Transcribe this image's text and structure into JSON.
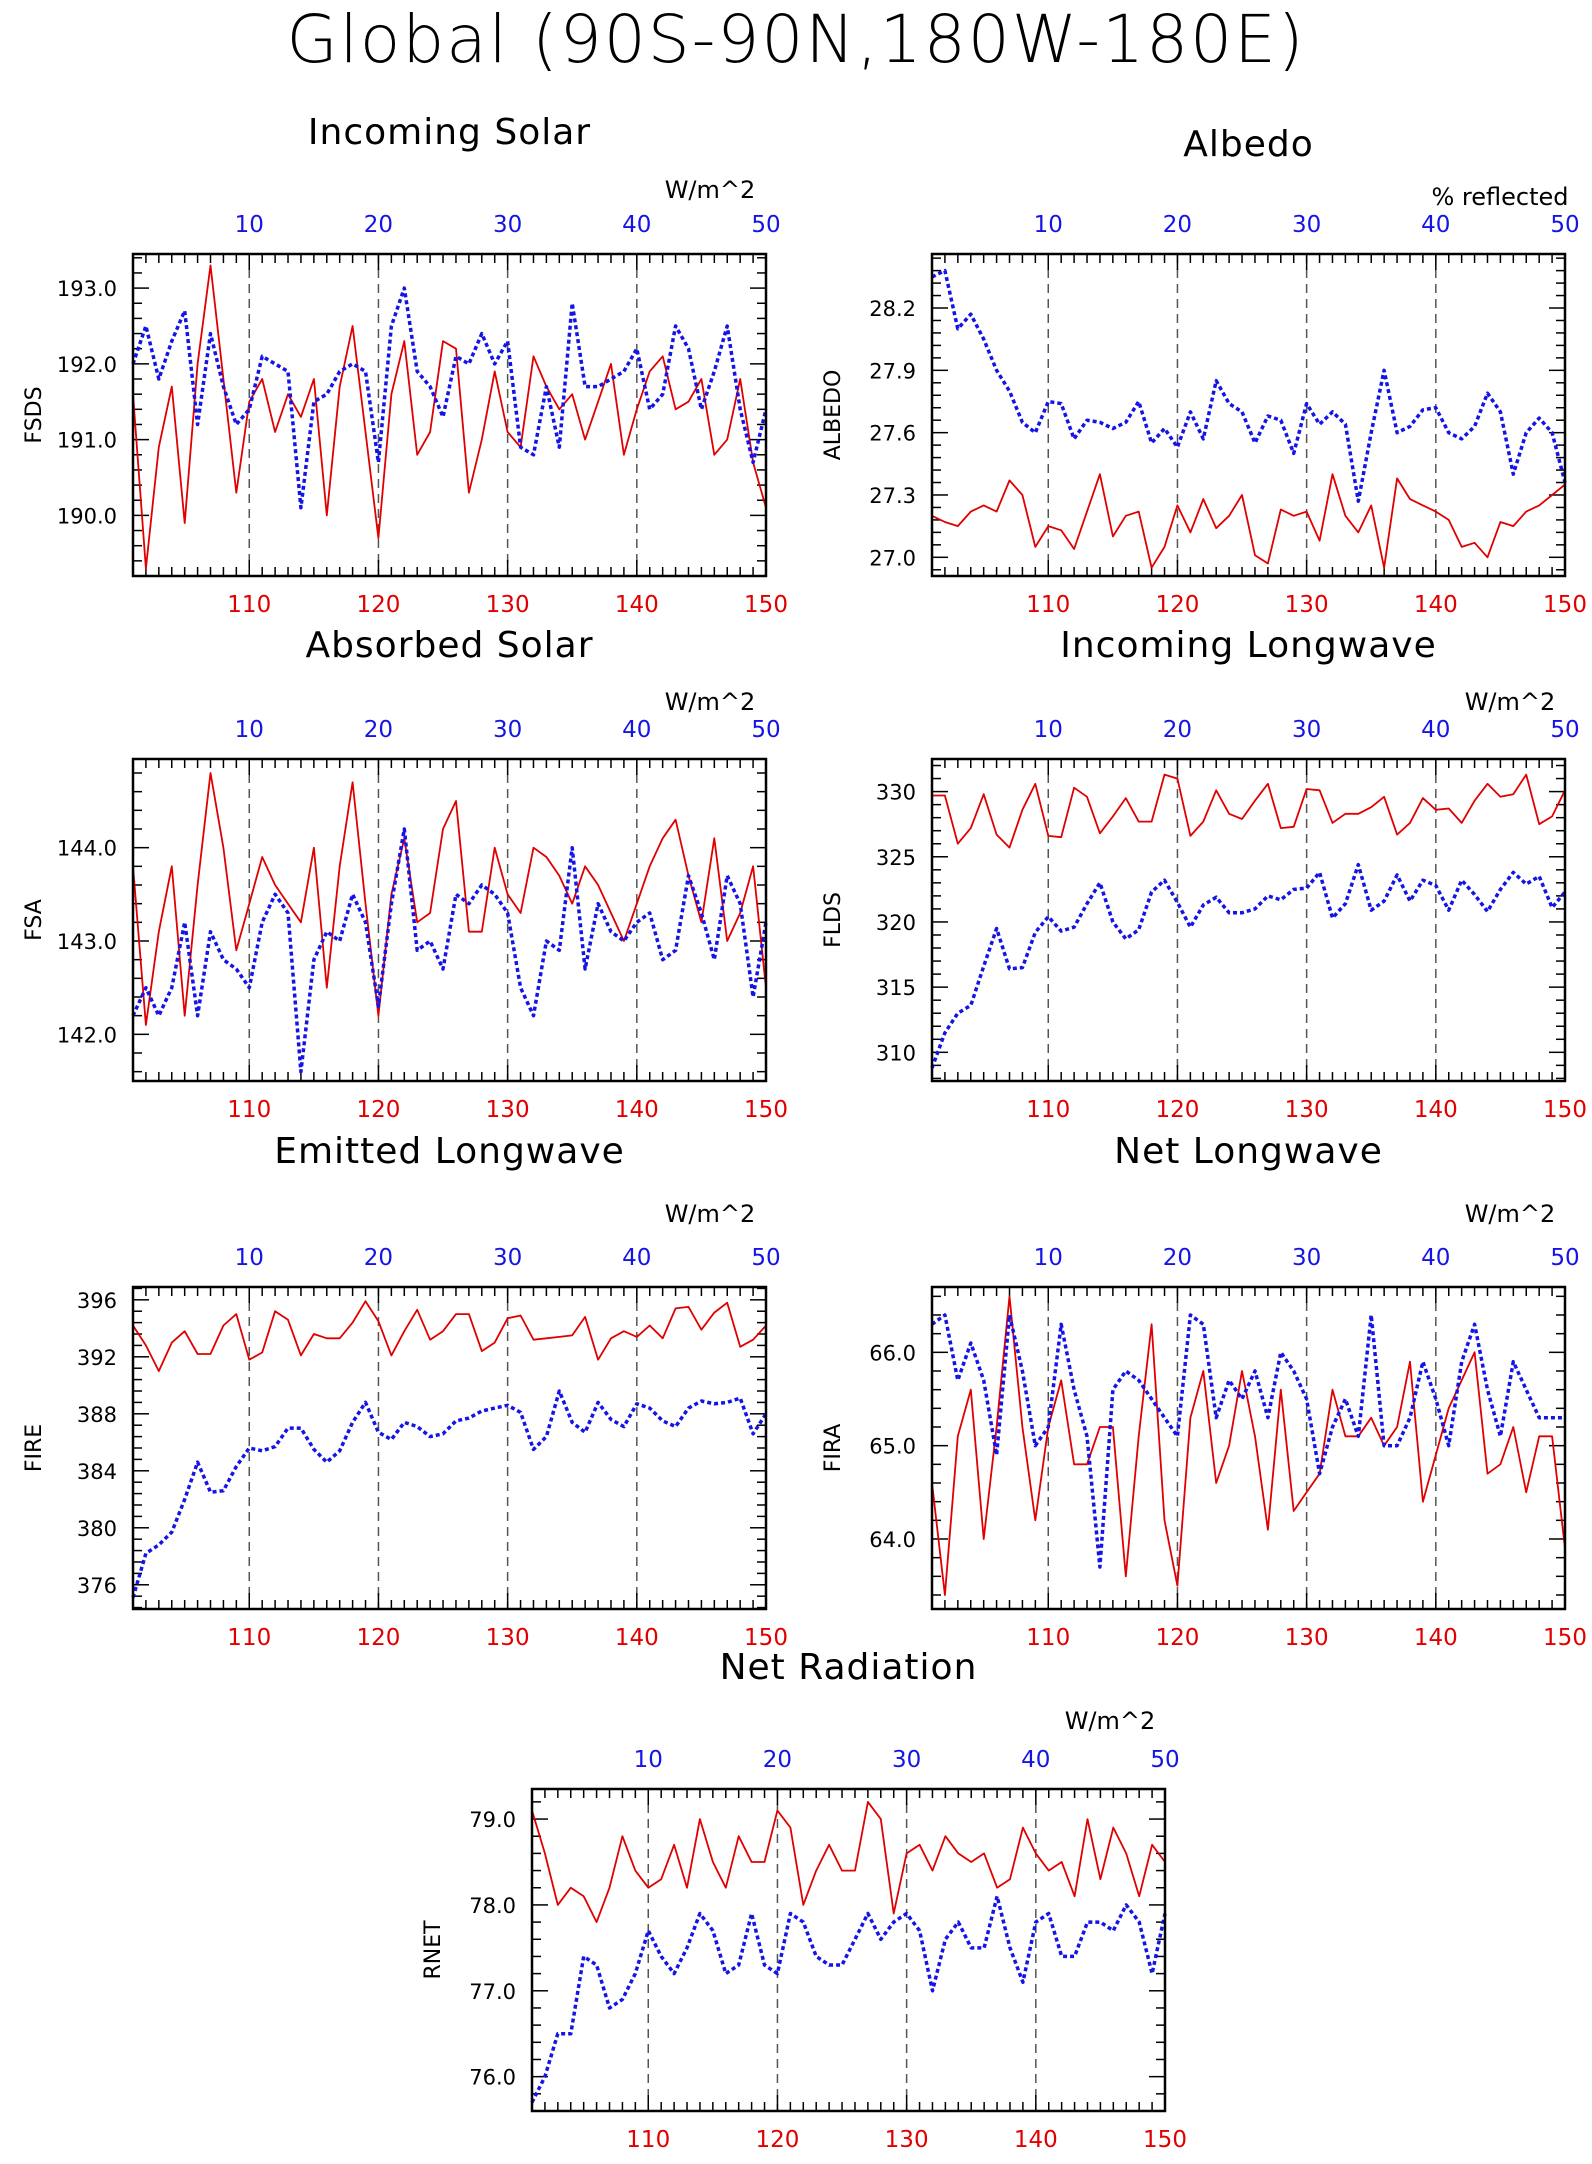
{
  "main_title": "Global (90S-90N,180W-180E)",
  "colors": {
    "model_a": "#e00000",
    "model_b": "#1414e6"
  },
  "chart_data": [
    {
      "type": "line",
      "title": "Incoming Solar",
      "ylabel": "FSDS",
      "unit": "W/m^2",
      "x_bottom": {
        "ticks": [
          110,
          120,
          130,
          140,
          150
        ],
        "range": [
          101,
          150
        ],
        "color": "#e00000"
      },
      "x_top": {
        "ticks": [
          10,
          20,
          30,
          40,
          50
        ],
        "range": [
          1,
          50
        ],
        "color": "#1414e6"
      },
      "yticks": [
        "193.0",
        "192.0",
        "191.0",
        "190.0"
      ],
      "ylim": [
        189.2,
        193.45
      ],
      "series": [
        {
          "values": [
            191.6,
            189.3,
            190.9,
            191.7,
            189.9,
            192.0,
            193.3,
            191.8,
            190.3,
            191.5,
            191.8,
            191.1,
            191.6,
            191.3,
            191.8,
            190.0,
            191.7,
            192.5,
            191.1,
            189.7,
            191.6,
            192.3,
            190.8,
            191.1,
            192.3,
            192.2,
            190.3,
            191.0,
            191.9,
            191.1,
            190.9,
            192.1,
            191.7,
            191.4,
            191.6,
            191.0,
            191.5,
            192.0,
            190.8,
            191.4,
            191.9,
            192.1,
            191.4,
            191.5,
            191.8,
            190.8,
            191.0,
            191.8,
            190.7,
            190.1
          ],
          "color": "#e00000",
          "style": "solid"
        },
        {
          "values": [
            192.0,
            192.5,
            191.8,
            192.3,
            192.7,
            191.2,
            192.4,
            191.7,
            191.2,
            191.4,
            192.1,
            192.0,
            191.9,
            190.1,
            191.5,
            191.6,
            191.9,
            192.0,
            191.9,
            190.7,
            192.5,
            193.0,
            191.9,
            191.7,
            191.3,
            192.1,
            192.0,
            192.4,
            192.0,
            192.3,
            190.9,
            190.8,
            191.7,
            190.9,
            192.8,
            191.7,
            191.7,
            191.8,
            191.9,
            192.2,
            191.4,
            191.6,
            192.5,
            192.2,
            191.4,
            191.9,
            192.5,
            191.4,
            190.7,
            191.4
          ],
          "color": "#1414e6",
          "style": "dotted"
        }
      ]
    },
    {
      "type": "line",
      "title": "Albedo",
      "ylabel": "ALBEDO",
      "unit": "% reflected",
      "x_bottom": {
        "ticks": [
          110,
          120,
          130,
          140,
          150
        ],
        "range": [
          101,
          150
        ],
        "color": "#e00000"
      },
      "x_top": {
        "ticks": [
          10,
          20,
          30,
          40,
          50
        ],
        "range": [
          1,
          50
        ],
        "color": "#1414e6"
      },
      "yticks": [
        "28.2",
        "27.9",
        "27.6",
        "27.3",
        "27.0"
      ],
      "ylim": [
        26.91,
        28.46
      ],
      "series": [
        {
          "values": [
            27.2,
            27.17,
            27.15,
            27.22,
            27.25,
            27.22,
            27.37,
            27.3,
            27.05,
            27.15,
            27.13,
            27.04,
            27.22,
            27.4,
            27.1,
            27.2,
            27.22,
            26.95,
            27.05,
            27.25,
            27.12,
            27.28,
            27.14,
            27.2,
            27.3,
            27.01,
            26.97,
            27.23,
            27.2,
            27.22,
            27.08,
            27.4,
            27.2,
            27.12,
            27.25,
            26.95,
            27.38,
            27.28,
            27.25,
            27.22,
            27.18,
            27.05,
            27.07,
            27.0,
            27.17,
            27.15,
            27.22,
            27.25,
            27.3,
            27.35
          ],
          "color": "#e00000",
          "style": "solid"
        },
        {
          "values": [
            28.35,
            28.38,
            28.1,
            28.17,
            28.05,
            27.9,
            27.8,
            27.65,
            27.6,
            27.75,
            27.74,
            27.57,
            27.66,
            27.65,
            27.62,
            27.65,
            27.75,
            27.55,
            27.62,
            27.53,
            27.7,
            27.57,
            27.85,
            27.74,
            27.7,
            27.55,
            27.68,
            27.66,
            27.5,
            27.74,
            27.64,
            27.7,
            27.64,
            27.27,
            27.6,
            27.9,
            27.6,
            27.63,
            27.71,
            27.72,
            27.6,
            27.57,
            27.63,
            27.79,
            27.7,
            27.4,
            27.6,
            27.67,
            27.6,
            27.36
          ],
          "color": "#1414e6",
          "style": "dotted"
        }
      ]
    },
    {
      "type": "line",
      "title": "Absorbed Solar",
      "ylabel": "FSA",
      "unit": "W/m^2",
      "x_bottom": {
        "ticks": [
          110,
          120,
          130,
          140,
          150
        ],
        "range": [
          101,
          150
        ],
        "color": "#e00000"
      },
      "x_top": {
        "ticks": [
          10,
          20,
          30,
          40,
          50
        ],
        "range": [
          1,
          50
        ],
        "color": "#1414e6"
      },
      "yticks": [
        "144.0",
        "143.0",
        "142.0"
      ],
      "ylim": [
        141.5,
        144.95
      ],
      "series": [
        {
          "values": [
            143.8,
            142.1,
            143.1,
            143.8,
            142.2,
            143.6,
            144.8,
            144.0,
            142.9,
            143.4,
            143.9,
            143.6,
            143.4,
            143.2,
            144.0,
            142.5,
            143.8,
            144.7,
            143.4,
            142.2,
            143.5,
            144.1,
            143.2,
            143.3,
            144.2,
            144.5,
            143.1,
            143.1,
            144.0,
            143.5,
            143.3,
            144.0,
            143.9,
            143.7,
            143.4,
            143.8,
            143.6,
            143.3,
            143.0,
            143.4,
            143.8,
            144.1,
            144.3,
            143.7,
            143.2,
            144.1,
            143.0,
            143.3,
            143.8,
            142.5
          ],
          "color": "#e00000",
          "style": "solid"
        },
        {
          "values": [
            142.2,
            142.5,
            142.2,
            142.5,
            143.2,
            142.2,
            143.1,
            142.8,
            142.7,
            142.5,
            143.2,
            143.5,
            143.3,
            141.6,
            142.8,
            143.1,
            143.0,
            143.5,
            143.2,
            142.3,
            143.4,
            144.2,
            142.9,
            143.0,
            142.7,
            143.5,
            143.4,
            143.6,
            143.5,
            143.3,
            142.5,
            142.2,
            143.0,
            142.9,
            144.0,
            142.7,
            143.4,
            143.1,
            143.0,
            143.2,
            143.3,
            142.8,
            142.9,
            143.7,
            143.3,
            142.8,
            143.7,
            143.4,
            142.4,
            143.2
          ],
          "color": "#1414e6",
          "style": "dotted"
        }
      ]
    },
    {
      "type": "line",
      "title": "Incoming Longwave",
      "ylabel": "FLDS",
      "unit": "W/m^2",
      "x_bottom": {
        "ticks": [
          110,
          120,
          130,
          140,
          150
        ],
        "range": [
          101,
          150
        ],
        "color": "#e00000"
      },
      "x_top": {
        "ticks": [
          10,
          20,
          30,
          40,
          50
        ],
        "range": [
          1,
          50
        ],
        "color": "#1414e6"
      },
      "yticks": [
        "330",
        "325",
        "320",
        "315",
        "310"
      ],
      "ylim": [
        307.8,
        332.5
      ],
      "series": [
        {
          "values": [
            329.7,
            329.7,
            326.0,
            327.2,
            329.8,
            326.7,
            325.7,
            328.6,
            330.6,
            326.6,
            326.5,
            330.3,
            329.6,
            326.8,
            328.1,
            329.5,
            327.7,
            327.7,
            331.3,
            331.0,
            326.6,
            327.7,
            330.1,
            328.3,
            327.9,
            329.3,
            330.6,
            327.2,
            327.3,
            330.2,
            330.1,
            327.6,
            328.3,
            328.3,
            328.8,
            329.6,
            326.7,
            327.6,
            329.5,
            328.6,
            328.7,
            327.6,
            329.3,
            330.6,
            329.6,
            329.8,
            331.3,
            327.5,
            328.1,
            330.1
          ],
          "color": "#e00000",
          "style": "solid"
        },
        {
          "values": [
            308.8,
            311.5,
            313.0,
            313.6,
            316.6,
            319.5,
            316.4,
            316.5,
            319.2,
            320.4,
            319.3,
            319.6,
            321.4,
            323.0,
            320.0,
            318.7,
            319.4,
            322.3,
            323.2,
            321.5,
            319.6,
            321.3,
            321.9,
            320.7,
            320.7,
            321.0,
            322.0,
            321.7,
            322.5,
            322.6,
            323.8,
            320.3,
            321.4,
            324.4,
            320.9,
            321.6,
            323.6,
            321.6,
            323.2,
            322.8,
            320.9,
            323.2,
            322.1,
            320.8,
            322.5,
            323.8,
            322.9,
            323.5,
            321.1,
            322.3
          ],
          "color": "#1414e6",
          "style": "dotted"
        }
      ]
    },
    {
      "type": "line",
      "title": "Emitted Longwave",
      "ylabel": "FIRE",
      "unit": "W/m^2",
      "x_bottom": {
        "ticks": [
          110,
          120,
          130,
          140,
          150
        ],
        "range": [
          101,
          150
        ],
        "color": "#e00000"
      },
      "x_top": {
        "ticks": [
          10,
          20,
          30,
          40,
          50
        ],
        "range": [
          1,
          50
        ],
        "color": "#1414e6"
      },
      "yticks": [
        "396",
        "392",
        "388",
        "384",
        "380",
        "376"
      ],
      "ylim": [
        374.3,
        396.9
      ],
      "series": [
        {
          "values": [
            394.2,
            392.8,
            391.0,
            393.0,
            393.8,
            392.2,
            392.2,
            394.2,
            395.0,
            391.8,
            392.3,
            395.2,
            394.6,
            392.1,
            393.6,
            393.3,
            393.3,
            394.4,
            395.9,
            394.5,
            392.1,
            393.8,
            395.3,
            393.2,
            393.8,
            395.0,
            395.0,
            392.4,
            393.0,
            394.7,
            394.9,
            393.2,
            393.3,
            393.4,
            393.5,
            394.8,
            391.8,
            393.3,
            393.8,
            393.4,
            394.2,
            393.3,
            395.4,
            395.5,
            393.9,
            395.1,
            395.8,
            392.7,
            393.2,
            394.2
          ],
          "color": "#e00000",
          "style": "solid"
        },
        {
          "values": [
            375.1,
            378.2,
            378.8,
            379.7,
            382.0,
            384.6,
            382.5,
            382.6,
            384.3,
            385.6,
            385.4,
            385.7,
            387.0,
            387.0,
            385.5,
            384.6,
            385.4,
            387.4,
            388.8,
            386.7,
            386.2,
            387.4,
            387.1,
            386.4,
            386.6,
            387.5,
            387.7,
            388.2,
            388.4,
            388.6,
            388.1,
            385.5,
            386.4,
            389.6,
            387.4,
            386.7,
            388.8,
            387.6,
            387.1,
            388.7,
            388.4,
            387.5,
            387.1,
            388.4,
            388.9,
            388.7,
            388.8,
            389.1,
            386.6,
            388.0
          ],
          "color": "#1414e6",
          "style": "dotted"
        }
      ]
    },
    {
      "type": "line",
      "title": "Net Longwave",
      "ylabel": "FIRA",
      "unit": "W/m^2",
      "x_bottom": {
        "ticks": [
          110,
          120,
          130,
          140,
          150
        ],
        "range": [
          101,
          150
        ],
        "color": "#e00000"
      },
      "x_top": {
        "ticks": [
          10,
          20,
          30,
          40,
          50
        ],
        "range": [
          1,
          50
        ],
        "color": "#1414e6"
      },
      "yticks": [
        "66.0",
        "65.0",
        "64.0"
      ],
      "ylim": [
        63.25,
        66.7
      ],
      "series": [
        {
          "values": [
            64.6,
            63.4,
            65.1,
            65.6,
            64.0,
            65.2,
            66.6,
            65.2,
            64.2,
            65.2,
            65.7,
            64.8,
            64.8,
            65.2,
            65.2,
            63.6,
            65.1,
            66.3,
            64.2,
            63.5,
            65.3,
            65.8,
            64.6,
            65.0,
            65.8,
            65.1,
            64.1,
            65.6,
            64.3,
            64.5,
            64.7,
            65.6,
            65.1,
            65.1,
            65.3,
            65.0,
            65.2,
            65.9,
            64.4,
            64.9,
            65.4,
            65.7,
            66.0,
            64.7,
            64.8,
            65.2,
            64.5,
            65.1,
            65.1,
            63.9
          ],
          "color": "#e00000",
          "style": "solid"
        },
        {
          "values": [
            66.3,
            66.4,
            65.7,
            66.1,
            65.7,
            64.9,
            66.4,
            65.8,
            65.0,
            65.2,
            66.3,
            65.6,
            65.1,
            63.7,
            65.6,
            65.8,
            65.7,
            65.5,
            65.3,
            65.1,
            66.4,
            66.3,
            65.3,
            65.7,
            65.5,
            65.8,
            65.3,
            66.0,
            65.8,
            65.5,
            64.7,
            65.2,
            65.5,
            65.1,
            66.4,
            65.0,
            65.0,
            65.3,
            65.9,
            65.5,
            65.0,
            65.9,
            66.3,
            65.6,
            65.1,
            65.9,
            65.6,
            65.3,
            65.3,
            65.3
          ],
          "color": "#1414e6",
          "style": "dotted"
        }
      ]
    },
    {
      "type": "line",
      "title": "Net Radiation",
      "ylabel": "RNET",
      "unit": "W/m^2",
      "x_bottom": {
        "ticks": [
          110,
          120,
          130,
          140,
          150
        ],
        "range": [
          101,
          150
        ],
        "color": "#e00000"
      },
      "x_top": {
        "ticks": [
          10,
          20,
          30,
          40,
          50
        ],
        "range": [
          1,
          50
        ],
        "color": "#1414e6"
      },
      "yticks": [
        "79.0",
        "78.0",
        "77.0",
        "76.0"
      ],
      "ylim": [
        75.6,
        79.35
      ],
      "series": [
        {
          "values": [
            79.1,
            78.6,
            78.0,
            78.2,
            78.1,
            77.8,
            78.2,
            78.8,
            78.4,
            78.2,
            78.3,
            78.7,
            78.2,
            79.0,
            78.5,
            78.2,
            78.8,
            78.5,
            78.5,
            79.1,
            78.9,
            78.0,
            78.4,
            78.7,
            78.4,
            78.4,
            79.2,
            79.0,
            77.9,
            78.6,
            78.7,
            78.4,
            78.8,
            78.6,
            78.5,
            78.6,
            78.2,
            78.3,
            78.9,
            78.6,
            78.4,
            78.5,
            78.1,
            79.0,
            78.3,
            78.9,
            78.6,
            78.1,
            78.7,
            78.5
          ],
          "color": "#e00000",
          "style": "solid"
        },
        {
          "values": [
            75.7,
            76.0,
            76.5,
            76.5,
            77.4,
            77.3,
            76.8,
            76.9,
            77.2,
            77.7,
            77.4,
            77.2,
            77.5,
            77.9,
            77.7,
            77.2,
            77.3,
            77.9,
            77.3,
            77.2,
            77.9,
            77.8,
            77.4,
            77.3,
            77.3,
            77.6,
            77.9,
            77.6,
            77.8,
            77.9,
            77.7,
            77.0,
            77.6,
            77.8,
            77.5,
            77.5,
            78.1,
            77.5,
            77.1,
            77.8,
            77.9,
            77.4,
            77.4,
            77.8,
            77.8,
            77.7,
            78.0,
            77.8,
            77.2,
            77.9
          ],
          "color": "#1414e6",
          "style": "dotted"
        }
      ]
    }
  ]
}
